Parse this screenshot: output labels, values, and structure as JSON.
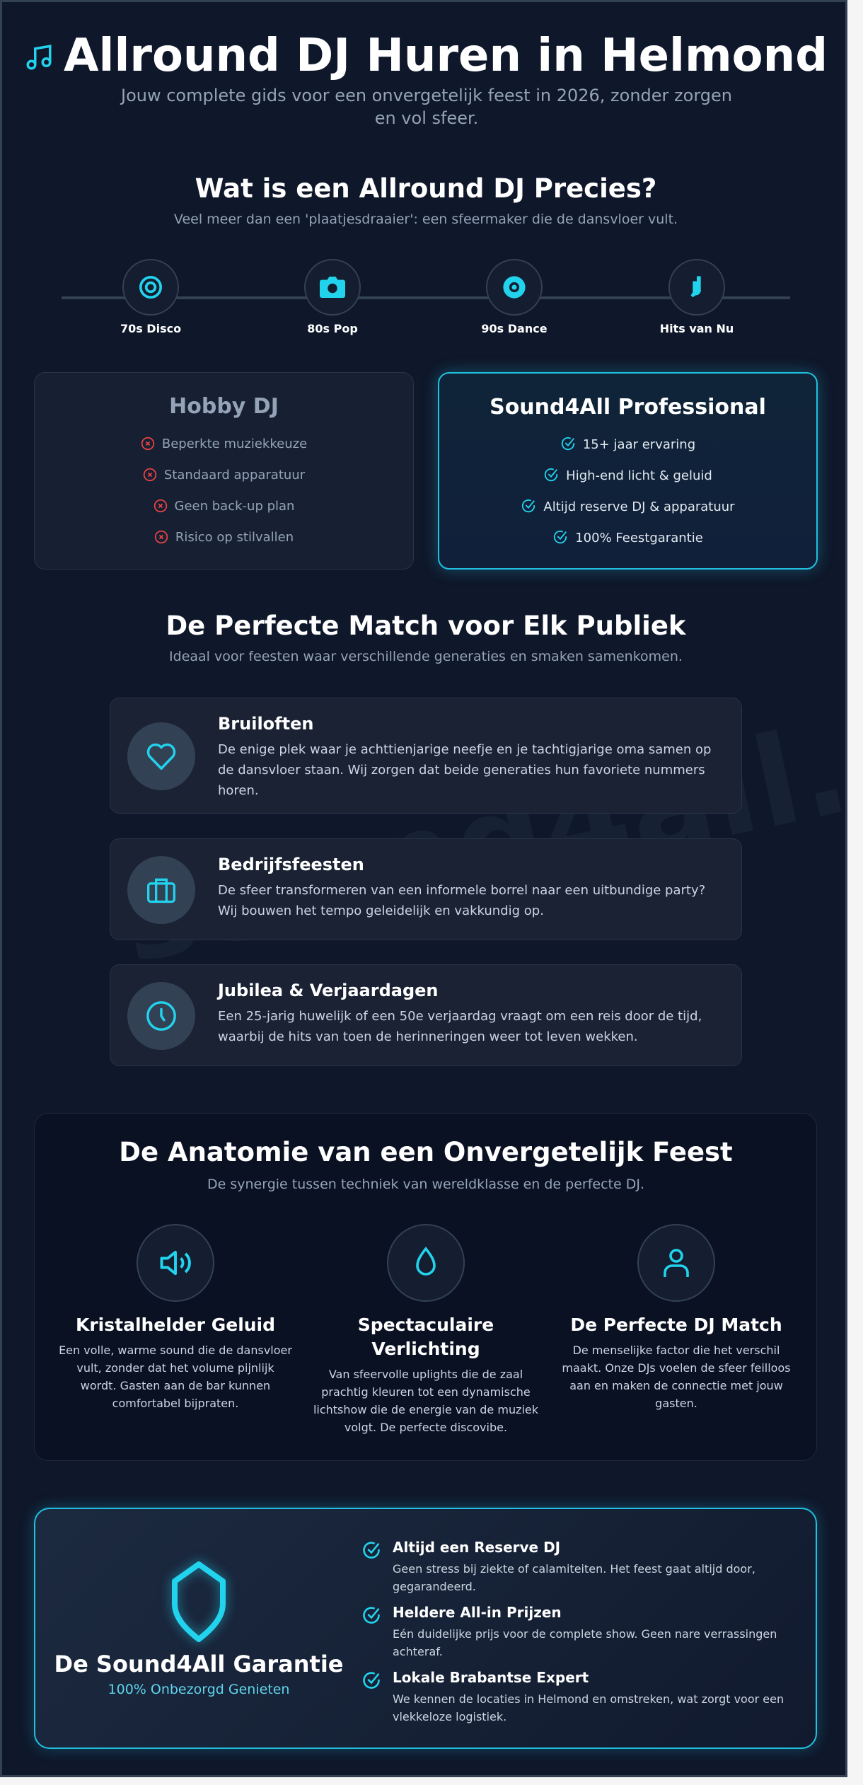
{
  "header": {
    "title": "Allround DJ Huren in Helmond",
    "subtitle": "Jouw complete gids voor een onvergetelijk feest in 2026, zonder zorgen en vol sfeer.",
    "icon": "music-note-icon"
  },
  "what": {
    "title": "Wat is een Allround DJ Precies?",
    "subtitle": "Veel meer dan een 'plaatjesdraaier': een sfeermaker die de dansvloer vult.",
    "timeline": [
      {
        "label": "70s Disco",
        "icon": "record-icon"
      },
      {
        "label": "80s Pop",
        "icon": "camera-icon"
      },
      {
        "label": "90s Dance",
        "icon": "cd-icon"
      },
      {
        "label": "Hits van Nu",
        "icon": "guitar-icon"
      }
    ]
  },
  "compare": {
    "hobby": {
      "title": "Hobby DJ",
      "items": [
        "Beperkte muziekkeuze",
        "Standaard apparatuur",
        "Geen back-up plan",
        "Risico op stilvallen"
      ]
    },
    "pro": {
      "title": "Sound4All Professional",
      "items": [
        "15+ jaar ervaring",
        "High-end licht & geluid",
        "Altijd reserve DJ & apparatuur",
        "100% Feestgarantie"
      ]
    }
  },
  "audience": {
    "title": "De Perfecte Match voor Elk Publiek",
    "subtitle": "Ideaal voor feesten waar verschillende generaties en smaken samenkomen.",
    "items": [
      {
        "title": "Bruiloften",
        "text": "De enige plek waar je achttienjarige neefje en je tachtigjarige oma samen op de dansvloer staan. Wij zorgen dat beide generaties hun favoriete nummers horen.",
        "icon": "heart-icon"
      },
      {
        "title": "Bedrijfsfeesten",
        "text": "De sfeer transformeren van een informele borrel naar een uitbundige party? Wij bouwen het tempo geleidelijk en vakkundig op.",
        "icon": "briefcase-icon"
      },
      {
        "title": "Jubilea & Verjaardagen",
        "text": "Een 25-jarig huwelijk of een 50e verjaardag vraagt om een reis door de tijd, waarbij de hits van toen de herinneringen weer tot leven wekken.",
        "icon": "clock-icon"
      }
    ]
  },
  "watermark": "sound4all.nl",
  "anatomy": {
    "title": "De Anatomie van een Onvergetelijk Feest",
    "subtitle": "De synergie tussen techniek van wereldklasse en de perfecte DJ.",
    "items": [
      {
        "title": "Kristalhelder Geluid",
        "text": "Een volle, warme sound die de dansvloer vult, zonder dat het volume pijnlijk wordt. Gasten aan de bar kunnen comfortabel bijpraten.",
        "icon": "speaker-icon"
      },
      {
        "title": "Spectaculaire Verlichting",
        "text": "Van sfeervolle uplights die de zaal prachtig kleuren tot een dynamische lichtshow die de energie van de muziek volgt. De perfecte discovibe.",
        "icon": "droplet-icon"
      },
      {
        "title": "De Perfecte DJ Match",
        "text": "De menselijke factor die het verschil maakt. Onze DJs voelen de sfeer feilloos aan en maken de connectie met jouw gasten.",
        "icon": "user-icon"
      }
    ]
  },
  "guarantee": {
    "title": "De Sound4All Garantie",
    "subtitle": "100% Onbezorgd Genieten",
    "icon": "shield-icon",
    "items": [
      {
        "title": "Altijd een Reserve DJ",
        "text": "Geen stress bij ziekte of calamiteiten. Het feest gaat altijd door, gegarandeerd."
      },
      {
        "title": "Heldere All-in Prijzen",
        "text": "Eén duidelijke prijs voor de complete show. Geen nare verrassingen achteraf."
      },
      {
        "title": "Lokale Brabantse Expert",
        "text": "We kennen de locaties in Helmond en omstreken, wat zorgt voor een vlekkeloze logistiek."
      }
    ]
  },
  "colors": {
    "background": "#0f172a",
    "accent": "#22d3ee",
    "negative": "#ef4444",
    "muted": "#94a3b8"
  }
}
